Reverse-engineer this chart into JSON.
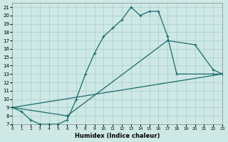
{
  "xlabel": "Humidex (Indice chaleur)",
  "background_color": "#cde8e5",
  "grid_color": "#aacccc",
  "line_color": "#1a6b6b",
  "xlim": [
    0,
    23
  ],
  "ylim": [
    7,
    21.5
  ],
  "xticks": [
    0,
    1,
    2,
    3,
    4,
    5,
    6,
    7,
    8,
    9,
    10,
    11,
    12,
    13,
    14,
    15,
    16,
    17,
    18,
    19,
    20,
    21,
    22,
    23
  ],
  "yticks": [
    7,
    8,
    9,
    10,
    11,
    12,
    13,
    14,
    15,
    16,
    17,
    18,
    19,
    20,
    21
  ],
  "curve1_x": [
    0,
    1,
    2,
    3,
    4,
    5,
    6,
    7,
    8,
    9,
    10,
    11,
    12,
    13,
    14,
    15,
    16,
    17,
    18,
    22,
    23
  ],
  "curve1_y": [
    9,
    8.5,
    7.5,
    7.0,
    7.0,
    7.0,
    7.5,
    10.0,
    13.0,
    15.5,
    17.5,
    18.5,
    19.5,
    21.0,
    20.0,
    20.5,
    20.5,
    17.5,
    13.0,
    13.0,
    13.0
  ],
  "curve2_x": [
    0,
    6,
    17,
    20,
    22,
    23
  ],
  "curve2_y": [
    9.0,
    8.0,
    17.0,
    16.5,
    13.5,
    13.0
  ],
  "curve3_x": [
    0,
    23
  ],
  "curve3_y": [
    9.0,
    13.0
  ]
}
